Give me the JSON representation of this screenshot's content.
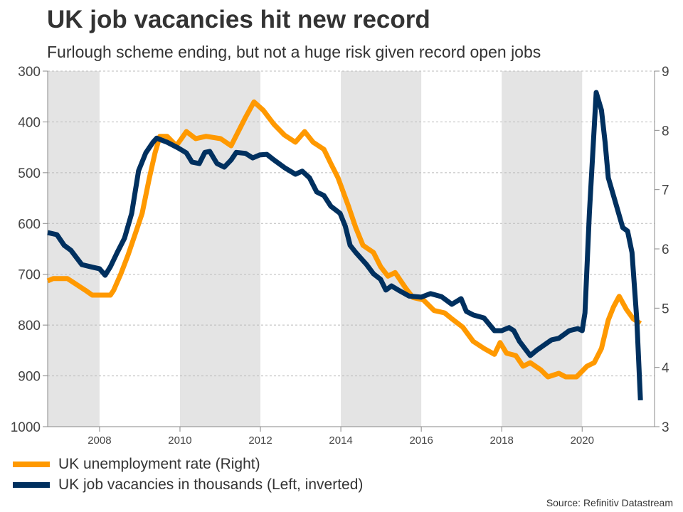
{
  "chart_data": {
    "type": "line",
    "title": "UK job vacancies hit new record",
    "subtitle": "Furlough scheme ending, but not a huge risk given record open jobs",
    "source": "Source: Refinitiv Datastream",
    "xlim": [
      2006.71,
      2021.8
    ],
    "x_ticks": [
      "2008",
      "2010",
      "2012",
      "2014",
      "2016",
      "2018",
      "2020"
    ],
    "left_axis": {
      "ylim": [
        300,
        1000
      ],
      "inverted": true,
      "ticks": [
        "300",
        "400",
        "500",
        "600",
        "700",
        "800",
        "900",
        "1000"
      ]
    },
    "right_axis": {
      "ylim": [
        3,
        9
      ],
      "ticks": [
        "3",
        "4",
        "5",
        "6",
        "7",
        "8",
        "9"
      ]
    },
    "grid": true,
    "shaded_periods": [
      [
        2006.71,
        2008
      ],
      [
        2010,
        2012
      ],
      [
        2014,
        2016
      ],
      [
        2018,
        2020
      ]
    ],
    "colors": {
      "unemployment": "#ff9900",
      "vacancies": "#00305f",
      "shade": "#e4e4e4"
    },
    "series": [
      {
        "name": "UK unemployment rate (Right)",
        "axis": "right",
        "x": [
          2006.71,
          2006.85,
          2007.2,
          2007.38,
          2007.65,
          2007.82,
          2008.27,
          2008.35,
          2008.53,
          2008.71,
          2008.88,
          2009.06,
          2009.24,
          2009.38,
          2009.5,
          2009.68,
          2009.91,
          2010.16,
          2010.39,
          2010.65,
          2011.01,
          2011.27,
          2011.63,
          2011.84,
          2012.07,
          2012.34,
          2012.6,
          2012.87,
          2013.1,
          2013.31,
          2013.58,
          2013.75,
          2013.93,
          2014.19,
          2014.37,
          2014.55,
          2014.81,
          2014.99,
          2015.17,
          2015.35,
          2015.61,
          2015.79,
          2016.05,
          2016.32,
          2016.58,
          2016.76,
          2017.03,
          2017.29,
          2017.56,
          2017.82,
          2017.96,
          2018.12,
          2018.35,
          2018.53,
          2018.71,
          2018.97,
          2019.15,
          2019.42,
          2019.59,
          2019.86,
          2020.12,
          2020.3,
          2020.48,
          2020.65,
          2020.78,
          2020.92,
          2021.1,
          2021.27,
          2021.45
        ],
        "values": [
          5.46,
          5.5,
          5.5,
          5.42,
          5.3,
          5.22,
          5.22,
          5.3,
          5.58,
          5.9,
          6.24,
          6.6,
          7.2,
          7.62,
          7.9,
          7.9,
          7.74,
          7.98,
          7.86,
          7.9,
          7.86,
          7.74,
          8.22,
          8.48,
          8.34,
          8.1,
          7.92,
          7.8,
          7.98,
          7.8,
          7.68,
          7.44,
          7.2,
          6.72,
          6.36,
          6.06,
          5.94,
          5.7,
          5.54,
          5.6,
          5.34,
          5.18,
          5.14,
          4.96,
          4.92,
          4.82,
          4.68,
          4.44,
          4.32,
          4.22,
          4.42,
          4.24,
          4.2,
          4.02,
          4.08,
          3.96,
          3.84,
          3.9,
          3.84,
          3.84,
          4.02,
          4.08,
          4.32,
          4.8,
          5.02,
          5.2,
          4.98,
          4.82,
          4.74
        ]
      },
      {
        "name": "UK job vacancies in thousands (Left, inverted)",
        "axis": "left",
        "x": [
          2006.71,
          2006.94,
          2007.12,
          2007.29,
          2007.56,
          2007.82,
          2008.0,
          2008.14,
          2008.27,
          2008.44,
          2008.62,
          2008.8,
          2008.97,
          2009.15,
          2009.33,
          2009.42,
          2009.68,
          2009.95,
          2010.16,
          2010.3,
          2010.48,
          2010.62,
          2010.74,
          2010.92,
          2011.1,
          2011.27,
          2011.4,
          2011.63,
          2011.81,
          2011.98,
          2012.16,
          2012.34,
          2012.6,
          2012.87,
          2013.04,
          2013.22,
          2013.4,
          2013.58,
          2013.75,
          2013.98,
          2014.11,
          2014.23,
          2014.37,
          2014.64,
          2014.81,
          2014.99,
          2015.12,
          2015.26,
          2015.43,
          2015.7,
          2016.0,
          2016.23,
          2016.5,
          2016.76,
          2016.99,
          2017.12,
          2017.29,
          2017.56,
          2017.82,
          2018.0,
          2018.18,
          2018.3,
          2018.44,
          2018.71,
          2018.88,
          2019.06,
          2019.24,
          2019.42,
          2019.68,
          2019.89,
          2020.0,
          2020.07,
          2020.18,
          2020.35,
          2020.48,
          2020.57,
          2020.65,
          2020.83,
          2021.01,
          2021.13,
          2021.24,
          2021.36,
          2021.45
        ],
        "values": [
          618,
          622,
          643,
          653,
          681,
          686,
          689,
          702,
          685,
          657,
          629,
          580,
          496,
          461,
          440,
          432,
          440,
          451,
          461,
          479,
          482,
          460,
          458,
          482,
          489,
          475,
          460,
          462,
          471,
          465,
          464,
          475,
          490,
          503,
          497,
          510,
          538,
          545,
          566,
          580,
          605,
          643,
          657,
          681,
          699,
          710,
          731,
          723,
          731,
          743,
          745,
          738,
          744,
          759,
          748,
          773,
          780,
          786,
          811,
          811,
          805,
          811,
          832,
          860,
          849,
          839,
          829,
          826,
          811,
          807,
          811,
          776,
          580,
          342,
          377,
          440,
          510,
          559,
          608,
          615,
          657,
          790,
          948
        ]
      }
    ]
  }
}
